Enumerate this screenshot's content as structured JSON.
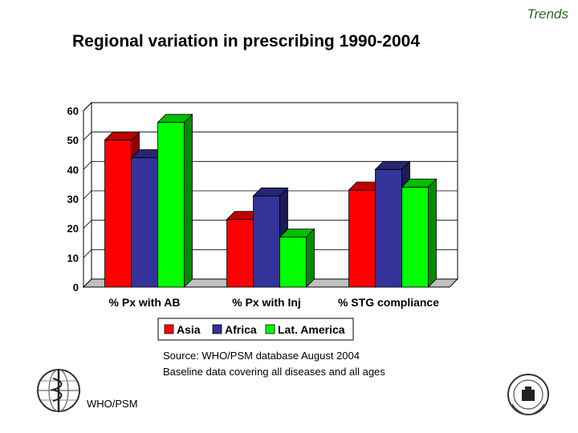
{
  "header": {
    "section": "Trends",
    "title": "Regional variation in prescribing 1990-2004"
  },
  "footer": {
    "source_line1": "Source: WHO/PSM database August 2004",
    "source_line2": "Baseline data covering all diseases and all ages",
    "org": "WHO/PSM"
  },
  "logos": {
    "left": "who-emblem-icon",
    "right": "un-emblem-icon"
  },
  "chart_data": {
    "type": "bar",
    "categories": [
      "% Px with AB",
      "% Px with Inj",
      "% STG compliance"
    ],
    "series": [
      {
        "name": "Asia",
        "values": [
          50,
          23,
          33
        ],
        "color": "#ff0000"
      },
      {
        "name": "Africa",
        "values": [
          44,
          31,
          40
        ],
        "color": "#333399"
      },
      {
        "name": "Lat. America",
        "values": [
          56,
          17,
          34
        ],
        "color": "#00ff00"
      }
    ],
    "ylim": [
      0,
      60
    ],
    "yticks": [
      0,
      10,
      20,
      30,
      40,
      50,
      60
    ],
    "grid": true,
    "legend": "bottom",
    "style": "3d",
    "wall_color": "#c0c0c0"
  }
}
